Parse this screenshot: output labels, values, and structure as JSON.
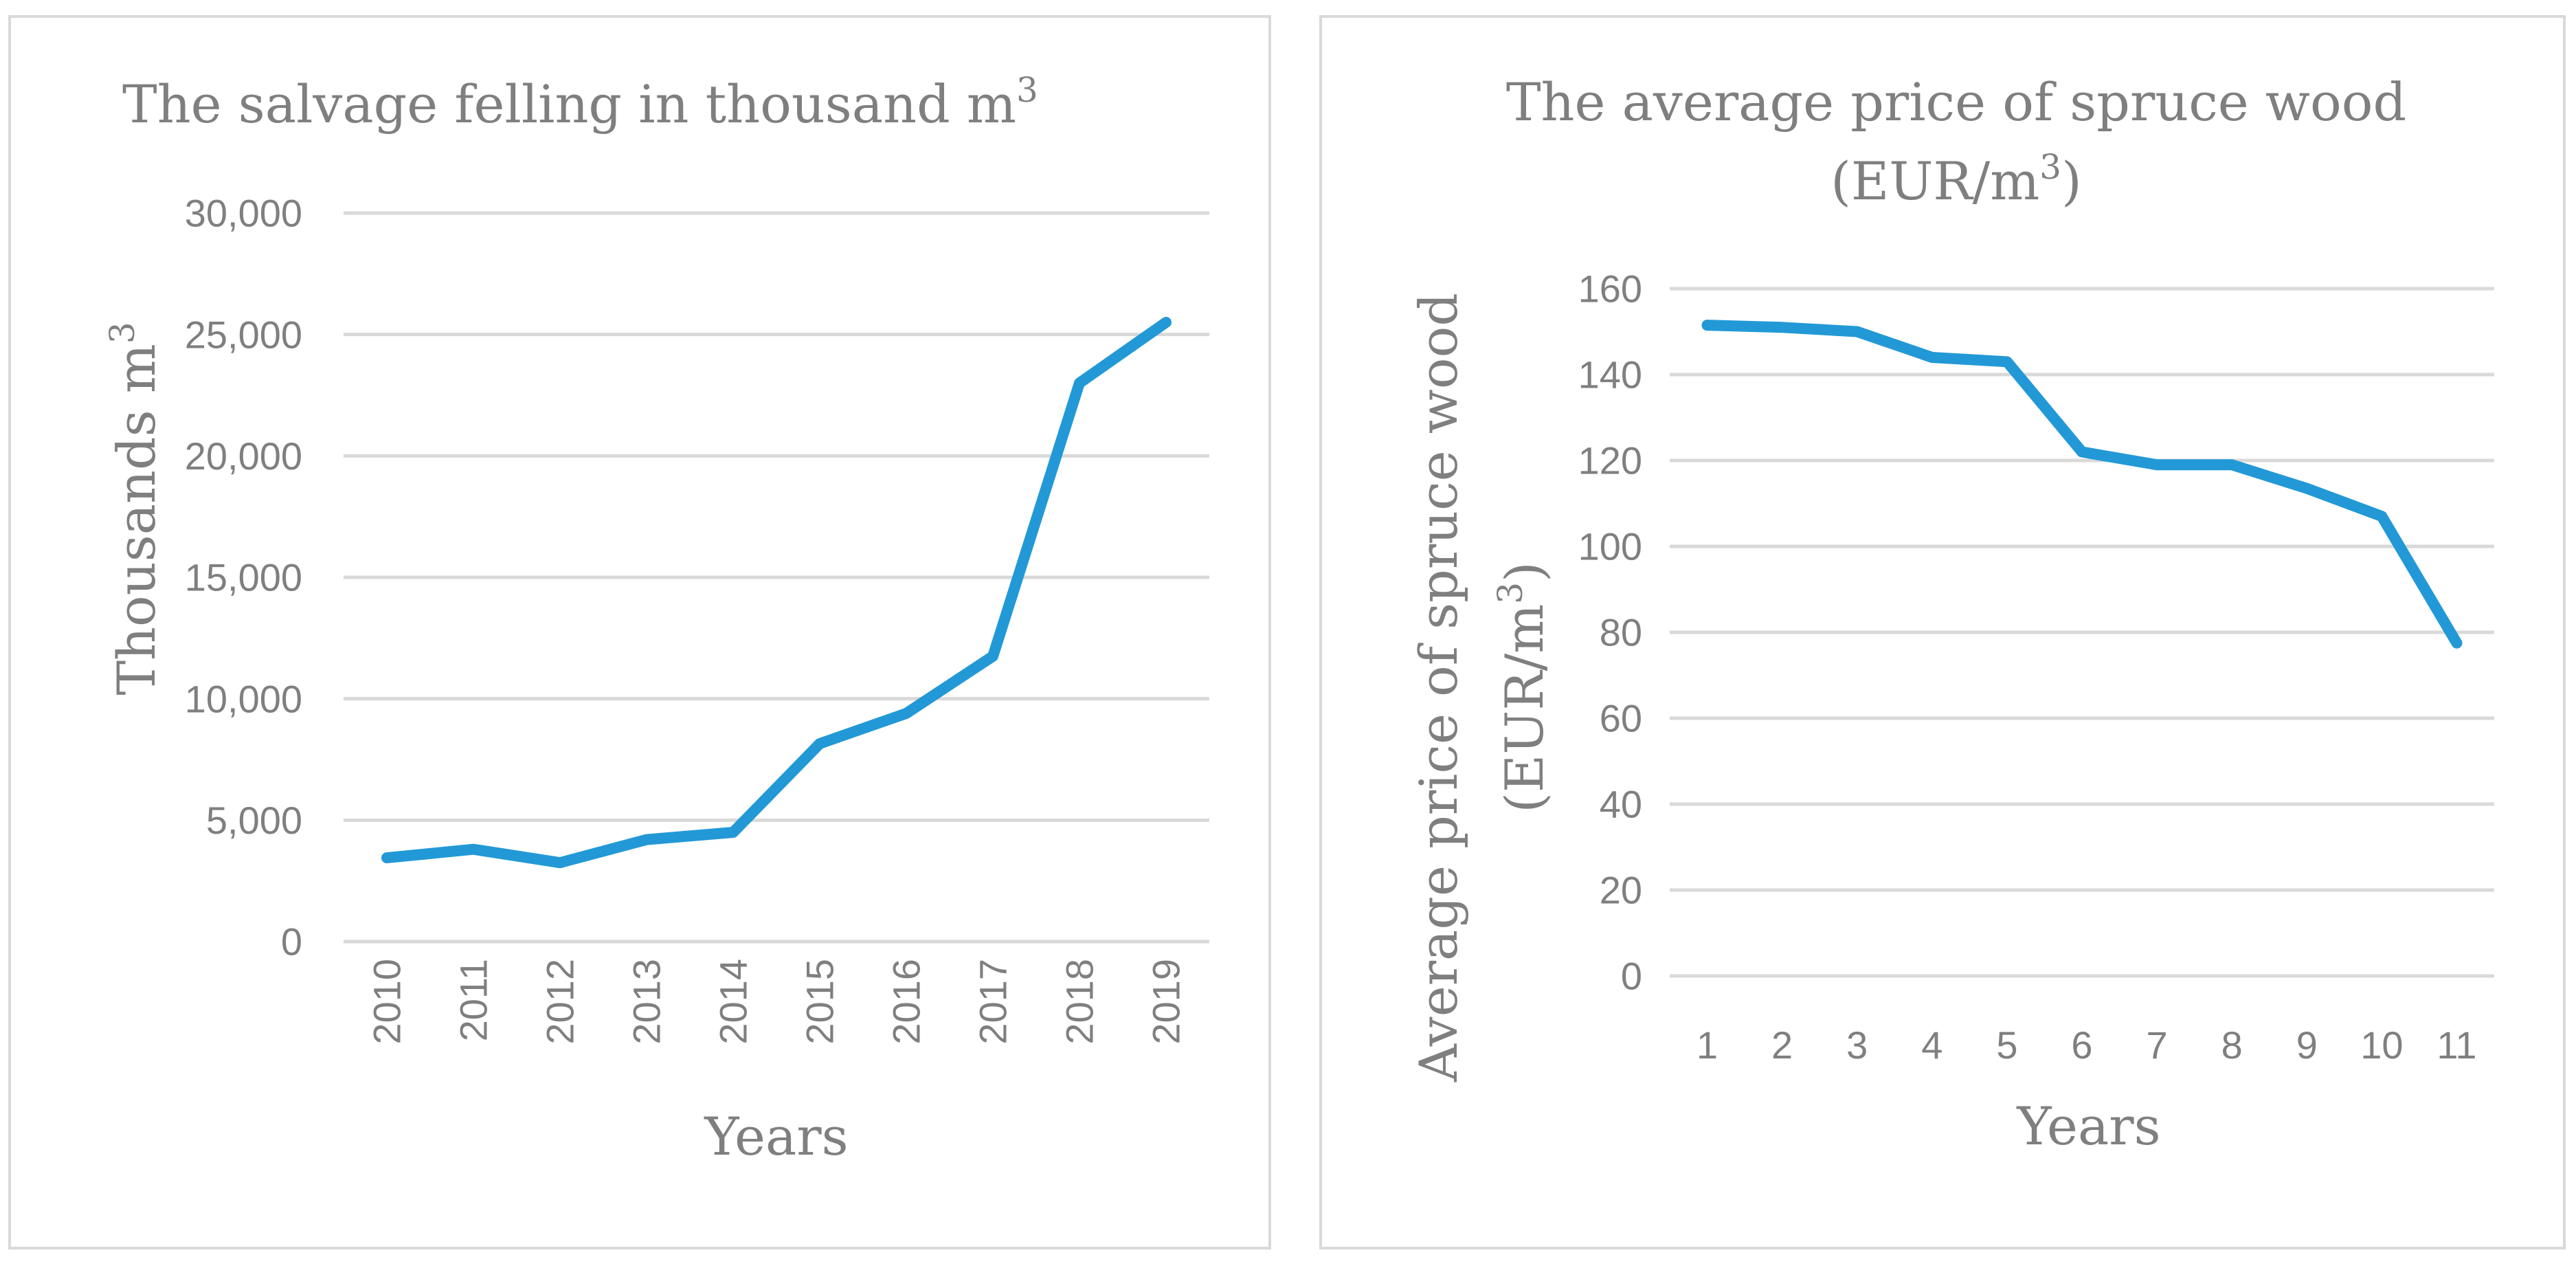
{
  "chart_data": [
    {
      "type": "line",
      "title": "The salvage felling in thousand m",
      "title_superscript": "3",
      "xlabel": "Years",
      "ylabel": "Thousands  m",
      "ylabel_superscript": "3",
      "categories": [
        "2010",
        "2011",
        "2012",
        "2013",
        "2014",
        "2015",
        "2016",
        "2017",
        "2018",
        "2019"
      ],
      "series": [
        {
          "values": [
            3450,
            3800,
            3250,
            4200,
            4500,
            8150,
            9400,
            11750,
            23000,
            25500
          ]
        }
      ],
      "ylim": [
        0,
        30000
      ],
      "yticks": [
        0,
        5000,
        10000,
        15000,
        20000,
        25000,
        30000
      ],
      "ytick_labels": [
        "0",
        "5,000",
        "10,000",
        "15,000",
        "20,000",
        "25,000",
        "30,000"
      ],
      "xtick_rotation": "vertical",
      "grid": true,
      "color": "#2299d6"
    },
    {
      "type": "line",
      "title_line1": "The average price of spruce wood",
      "title_line2": "(EUR/m",
      "title_superscript": "3",
      "title_line2_end": ")",
      "xlabel": "Years",
      "ylabel_line1": "Average price of spruce wood",
      "ylabel_line2": "(EUR/m",
      "ylabel_superscript": "3",
      "ylabel_line2_end": ")",
      "categories": [
        "1",
        "2",
        "3",
        "4",
        "5",
        "6",
        "7",
        "8",
        "9",
        "10",
        "11"
      ],
      "series": [
        {
          "values": [
            151.5,
            151,
            150,
            144,
            143,
            122,
            119,
            119,
            113.5,
            107,
            77.5
          ]
        }
      ],
      "ylim": [
        0,
        160
      ],
      "yticks": [
        0,
        20,
        40,
        60,
        80,
        100,
        120,
        140,
        160
      ],
      "ytick_labels": [
        "0",
        "20",
        "40",
        "60",
        "80",
        "100",
        "120",
        "140",
        "160"
      ],
      "grid": true,
      "color": "#2299d6"
    }
  ]
}
